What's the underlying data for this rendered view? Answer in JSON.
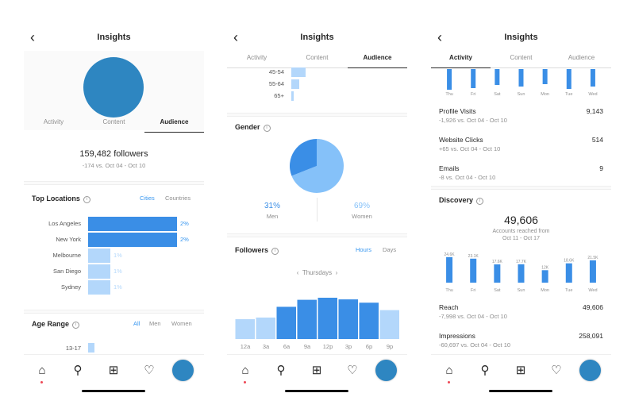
{
  "colors": {
    "accent": "#3897f0",
    "bar_dark": "#3a8ee6",
    "bar_light": "#b3d7fb",
    "donut_dark": "#3a8ee6",
    "donut_light": "#85c1f9",
    "avatar": "#2e86c1"
  },
  "header": {
    "title": "Insights"
  },
  "tabs": [
    "Activity",
    "Content",
    "Audience"
  ],
  "screen1": {
    "active_tab": 2,
    "followers_count": "159,482 followers",
    "followers_change": "-174 vs. Oct 04 - Oct 10",
    "top_locations": {
      "title": "Top Locations",
      "options": [
        "Cities",
        "Countries"
      ],
      "selected": 0,
      "items": [
        {
          "label": "Los Angeles",
          "value": 2,
          "pct": "2%",
          "highlight": true
        },
        {
          "label": "New York",
          "value": 2,
          "pct": "2%",
          "highlight": true
        },
        {
          "label": "Melbourne",
          "value": 1,
          "pct": "1%",
          "highlight": false
        },
        {
          "label": "San Diego",
          "value": 1,
          "pct": "1%",
          "highlight": false
        },
        {
          "label": "Sydney",
          "value": 1,
          "pct": "1%",
          "highlight": false
        }
      ]
    },
    "age_range": {
      "title": "Age Range",
      "options": [
        "All",
        "Men",
        "Women"
      ],
      "selected": 0,
      "first_label": "13-17"
    }
  },
  "screen2": {
    "active_tab": 2,
    "age_tail": [
      {
        "label": "45-54",
        "value": 0.22
      },
      {
        "label": "55-64",
        "value": 0.12
      },
      {
        "label": "65+",
        "value": 0.04
      }
    ],
    "gender": {
      "title": "Gender",
      "men_pct": "31%",
      "men_label": "Men",
      "men_value": 31,
      "women_pct": "69%",
      "women_label": "Women",
      "women_value": 69
    },
    "followers": {
      "title": "Followers",
      "options": [
        "Hours",
        "Days"
      ],
      "selected": 0,
      "day": "Thursdays",
      "chart_data": {
        "type": "bar",
        "categories": [
          "12a",
          "3a",
          "6a",
          "9a",
          "12p",
          "3p",
          "6p",
          "9p"
        ],
        "values": [
          48,
          52,
          78,
          95,
          100,
          96,
          88,
          70
        ],
        "ylim": [
          0,
          100
        ]
      }
    }
  },
  "screen3": {
    "active_tab": 0,
    "top_days": [
      "Thu",
      "Fri",
      "Sat",
      "Sun",
      "Mon",
      "Tue",
      "Wed"
    ],
    "top_values": [
      26,
      24,
      20,
      22,
      19,
      25,
      22
    ],
    "rows_top": [
      {
        "label": "Profile Visits",
        "sub": "-1,926 vs. Oct 04 - Oct 10",
        "value": "9,143"
      },
      {
        "label": "Website Clicks",
        "sub": "+65 vs. Oct 04 - Oct 10",
        "value": "514"
      },
      {
        "label": "Emails",
        "sub": "-8 vs. Oct 04 - Oct 10",
        "value": "9"
      }
    ],
    "discovery": {
      "title": "Discovery",
      "reach_total": "49,606",
      "reach_caption_1": "Accounts reached from",
      "reach_caption_2": "Oct 11 - Oct 17",
      "chart_data": {
        "type": "bar",
        "categories": [
          "Thu",
          "Fri",
          "Sat",
          "Sun",
          "Mon",
          "Tue",
          "Wed"
        ],
        "values": [
          24.6,
          23.1,
          17.6,
          17.7,
          12.0,
          18.6,
          21.5
        ],
        "labels": [
          "24.6K",
          "23.1K",
          "17.6K",
          "17.7K",
          "12K",
          "18.6K",
          "21.5K"
        ],
        "ylim": [
          0,
          26
        ]
      }
    },
    "rows_bottom": [
      {
        "label": "Reach",
        "sub": "-7,998 vs. Oct 04 - Oct 10",
        "value": "49,606"
      },
      {
        "label": "Impressions",
        "sub": "-60,697 vs. Oct 04 - Oct 10",
        "value": "258,091"
      }
    ]
  },
  "nav": {
    "icons": [
      "home-icon",
      "search-icon",
      "add-post-icon",
      "heart-icon",
      "profile-avatar"
    ]
  }
}
